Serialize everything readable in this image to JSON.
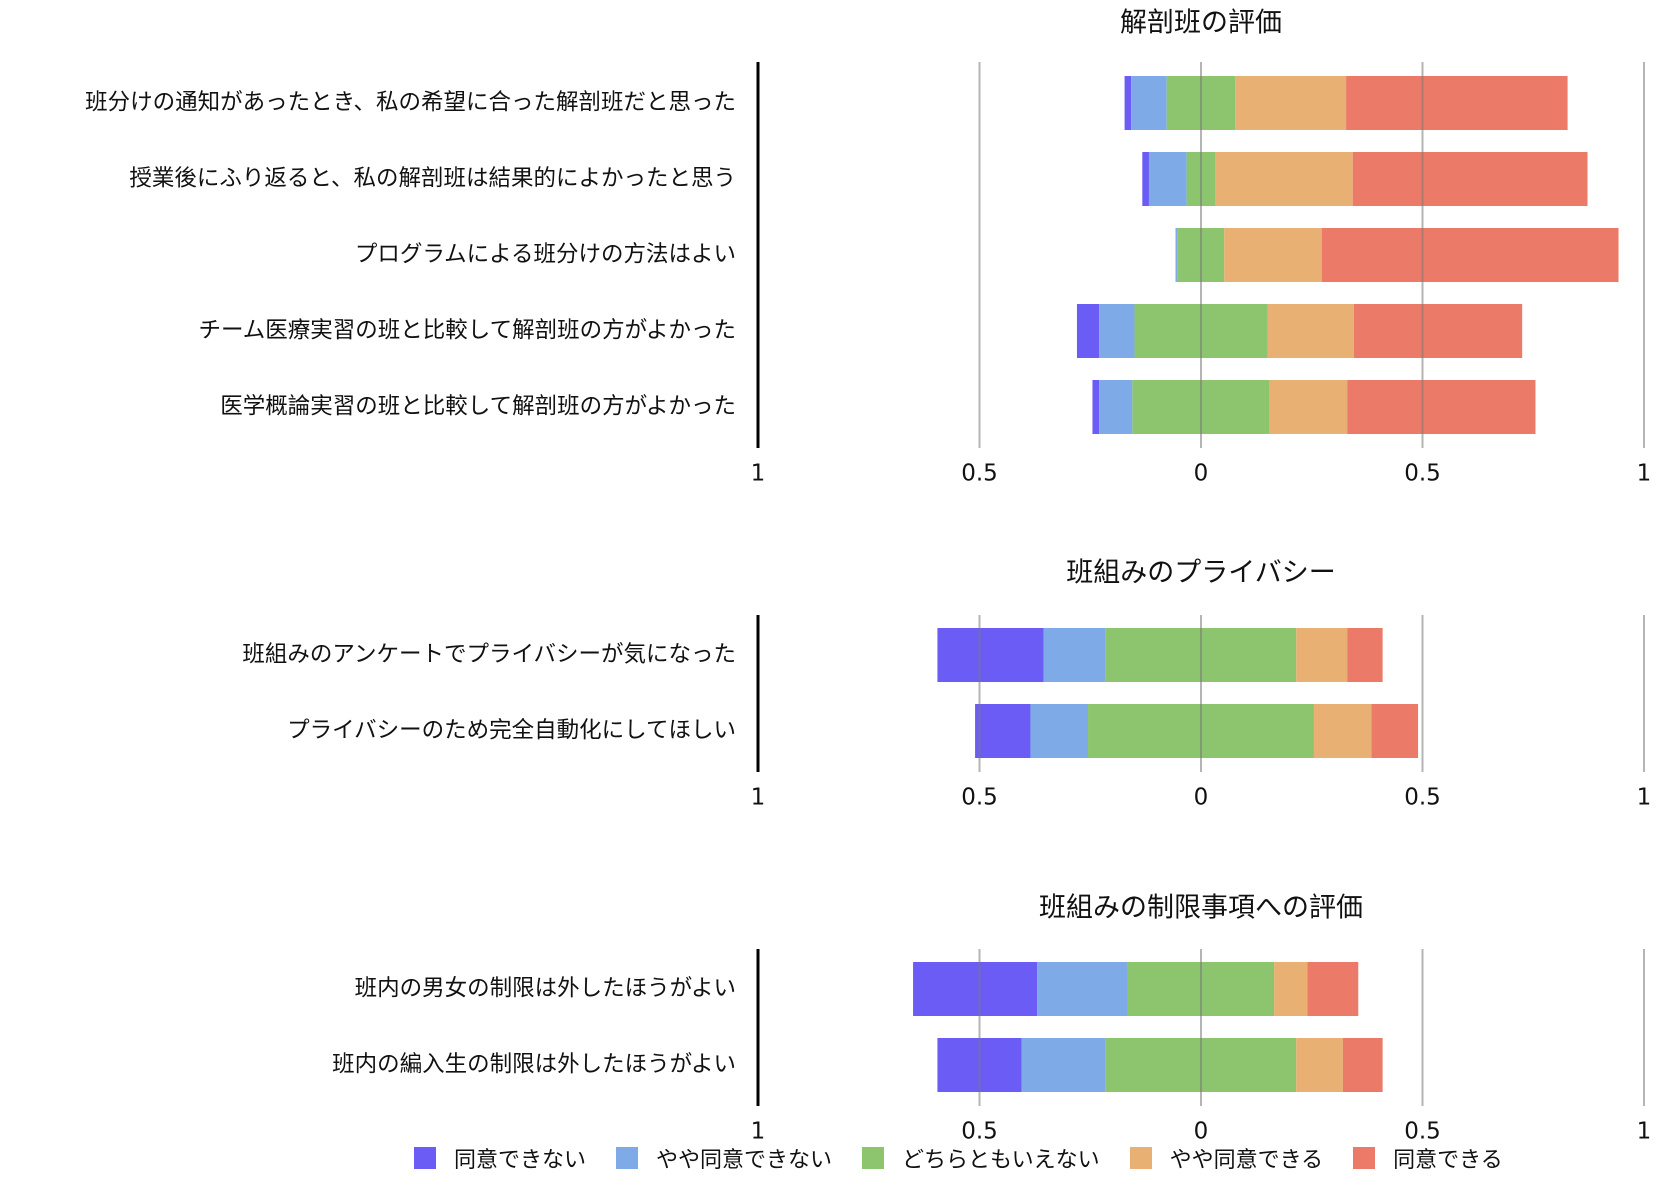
{
  "chart_data": {
    "type": "bar",
    "orientation": "horizontal-diverging-stacked",
    "legend": {
      "position": "bottom",
      "items": [
        {
          "name": "同意できない",
          "color": "#6a5cf5"
        },
        {
          "name": "やや同意できない",
          "color": "#7eaae8"
        },
        {
          "name": "どちらともいえない",
          "color": "#8dc46e"
        },
        {
          "name": "やや同意できる",
          "color": "#e8b072"
        },
        {
          "name": "同意できる",
          "color": "#ec7a68"
        }
      ]
    },
    "panels": [
      {
        "title": "解剖班の評価",
        "xlim": [
          -1,
          1
        ],
        "ticks": [
          {
            "value": -1,
            "label": "1"
          },
          {
            "value": -0.5,
            "label": "0.5"
          },
          {
            "value": 0,
            "label": "0"
          },
          {
            "value": 0.5,
            "label": "0.5"
          },
          {
            "value": 1,
            "label": "1"
          }
        ],
        "grid": true,
        "items": [
          {
            "label": "班分けの通知があったとき、私の希望に合った解剖班だと思った",
            "values": [
              0.015,
              0.08,
              0.155,
              0.25,
              0.5
            ]
          },
          {
            "label": "授業後にふり返ると、私の解剖班は結果的によかったと思う",
            "values": [
              0.015,
              0.085,
              0.065,
              0.31,
              0.53
            ]
          },
          {
            "label": "プログラムによる班分けの方法はよい",
            "values": [
              0.0,
              0.005,
              0.105,
              0.22,
              0.67
            ]
          },
          {
            "label": "チーム医療実習の班と比較して解剖班の方がよかった",
            "values": [
              0.05,
              0.08,
              0.3,
              0.195,
              0.38
            ]
          },
          {
            "label": "医学概論実習の班と比較して解剖班の方がよかった",
            "values": [
              0.015,
              0.075,
              0.31,
              0.175,
              0.425
            ]
          }
        ]
      },
      {
        "title": "班組みのプライバシー",
        "xlim": [
          -1,
          1
        ],
        "ticks": [
          {
            "value": -1,
            "label": "1"
          },
          {
            "value": -0.5,
            "label": "0.5"
          },
          {
            "value": 0,
            "label": "0"
          },
          {
            "value": 0.5,
            "label": "0.5"
          },
          {
            "value": 1,
            "label": "1"
          }
        ],
        "grid": true,
        "items": [
          {
            "label": "班組みのアンケートでプライバシーが気になった",
            "values": [
              0.24,
              0.14,
              0.43,
              0.115,
              0.08
            ]
          },
          {
            "label": "プライバシーのため完全自動化にしてほしい",
            "values": [
              0.125,
              0.13,
              0.51,
              0.13,
              0.105
            ]
          }
        ]
      },
      {
        "title": "班組みの制限事項への評価",
        "xlim": [
          -1,
          1
        ],
        "ticks": [
          {
            "value": -1,
            "label": "1"
          },
          {
            "value": -0.5,
            "label": "0.5"
          },
          {
            "value": 0,
            "label": "0"
          },
          {
            "value": 0.5,
            "label": "0.5"
          },
          {
            "value": 1,
            "label": "1"
          }
        ],
        "grid": true,
        "items": [
          {
            "label": "班内の男女の制限は外したほうがよい",
            "values": [
              0.28,
              0.205,
              0.33,
              0.075,
              0.115
            ]
          },
          {
            "label": "班内の編入生の制限は外したほうがよい",
            "values": [
              0.19,
              0.19,
              0.43,
              0.105,
              0.09
            ]
          }
        ]
      }
    ]
  }
}
